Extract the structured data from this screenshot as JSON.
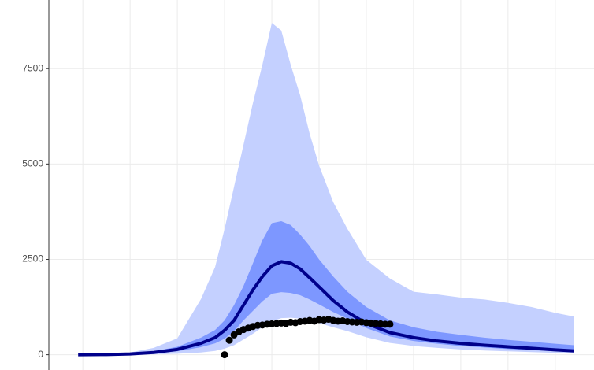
{
  "chart_data": {
    "type": "line",
    "xlim": [
      -7.2,
      108.2
    ],
    "ylim": [
      -400,
      9300
    ],
    "xticks": [
      0,
      10,
      20,
      30,
      40,
      50,
      60,
      70,
      80,
      90,
      100
    ],
    "yticks": [
      0,
      2500,
      5000,
      7500
    ],
    "grid": true,
    "x": [
      -1,
      5,
      10,
      15,
      20,
      25,
      28,
      30,
      32,
      34,
      36,
      38,
      40,
      42,
      44,
      46,
      48,
      50,
      53,
      56,
      60,
      65,
      70,
      75,
      80,
      85,
      90,
      95,
      100,
      104
    ],
    "band_outer": {
      "color": "#c4d0ff",
      "upper": [
        0,
        15,
        60,
        180,
        430,
        1460,
        2300,
        3300,
        4400,
        5500,
        6600,
        7600,
        8700,
        8500,
        7600,
        6800,
        5800,
        4960,
        4000,
        3300,
        2490,
        2000,
        1650,
        1580,
        1500,
        1450,
        1360,
        1250,
        1100,
        1000
      ],
      "lower": [
        0,
        1,
        3,
        10,
        25,
        60,
        100,
        160,
        250,
        400,
        550,
        720,
        880,
        960,
        970,
        950,
        900,
        830,
        720,
        620,
        460,
        310,
        230,
        180,
        140,
        110,
        90,
        70,
        50,
        40
      ]
    },
    "band_inner": {
      "color": "#7d97ff",
      "upper": [
        0,
        7,
        30,
        90,
        210,
        450,
        650,
        900,
        1300,
        1800,
        2400,
        3000,
        3450,
        3500,
        3400,
        3150,
        2850,
        2500,
        2050,
        1650,
        1250,
        900,
        720,
        600,
        520,
        450,
        390,
        340,
        290,
        250
      ],
      "lower": [
        0,
        3,
        12,
        40,
        90,
        200,
        300,
        420,
        620,
        900,
        1150,
        1400,
        1600,
        1640,
        1620,
        1560,
        1450,
        1320,
        1120,
        950,
        700,
        480,
        360,
        290,
        230,
        190,
        150,
        120,
        90,
        70
      ]
    },
    "line": {
      "color": "#00008b",
      "values": [
        0,
        5,
        20,
        60,
        140,
        300,
        450,
        640,
        900,
        1300,
        1700,
        2050,
        2330,
        2440,
        2400,
        2250,
        2020,
        1780,
        1420,
        1120,
        820,
        580,
        450,
        360,
        300,
        250,
        210,
        170,
        130,
        100
      ]
    },
    "points": {
      "color": "#000000",
      "x": [
        30,
        31,
        32,
        33,
        34,
        35,
        36,
        37,
        38,
        39,
        40,
        41,
        42,
        43,
        44,
        45,
        46,
        47,
        48,
        49,
        50,
        51,
        52,
        53,
        54,
        55,
        56,
        57,
        58,
        59,
        60,
        61,
        62,
        63,
        64,
        65
      ],
      "values": [
        0,
        380,
        520,
        600,
        660,
        700,
        740,
        770,
        780,
        800,
        810,
        820,
        830,
        820,
        850,
        840,
        870,
        880,
        900,
        880,
        920,
        910,
        930,
        900,
        880,
        890,
        870,
        860,
        850,
        860,
        840,
        830,
        820,
        810,
        800,
        800
      ]
    }
  }
}
